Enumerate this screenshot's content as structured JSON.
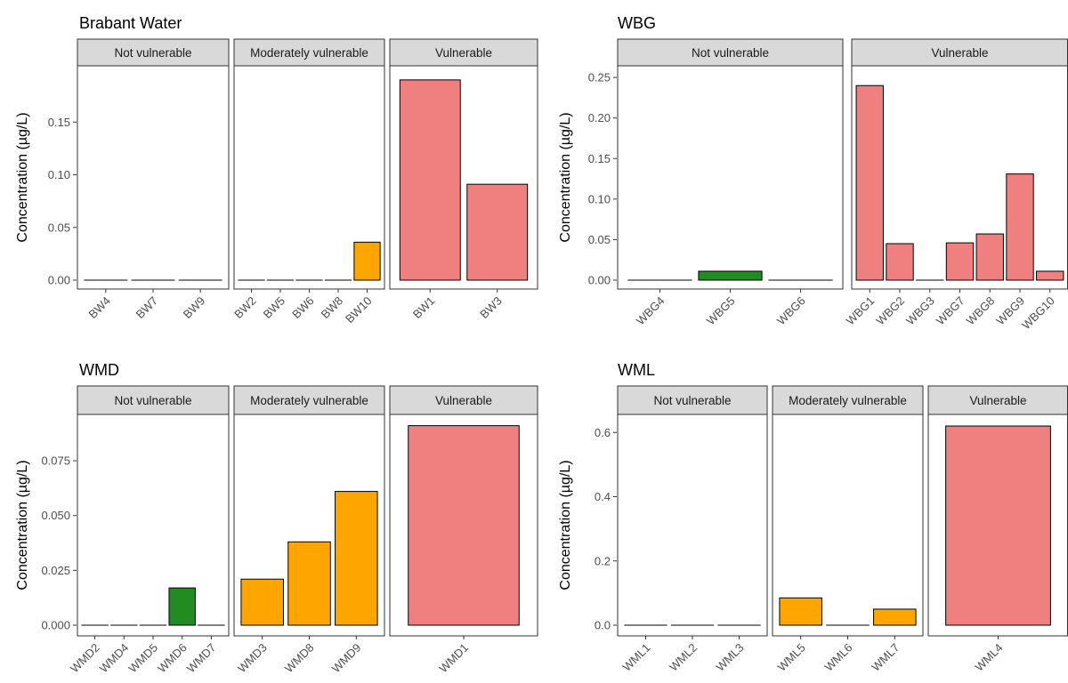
{
  "colors": {
    "not_vulnerable": "#228B22",
    "moderately_vulnerable": "#FFA500",
    "vulnerable": "#F08080",
    "strip_fill": "#D9D9D9",
    "panel_border": "#333333"
  },
  "chart_data": [
    {
      "type": "bar",
      "title": "Brabant Water",
      "ylabel": "Concentration (µg/L)",
      "ylim": [
        0,
        0.2
      ],
      "yticks": [
        0,
        0.05,
        0.1,
        0.15
      ],
      "ytick_labels": [
        "0.00",
        "0.05",
        "0.10",
        "0.15"
      ],
      "facets": [
        {
          "label": "Not vulnerable",
          "category": "not_vulnerable",
          "bars": [
            {
              "name": "BW4",
              "value": 0
            },
            {
              "name": "BW7",
              "value": 0
            },
            {
              "name": "BW9",
              "value": 0
            }
          ]
        },
        {
          "label": "Moderately vulnerable",
          "category": "moderately_vulnerable",
          "bars": [
            {
              "name": "BW2",
              "value": 0
            },
            {
              "name": "BW5",
              "value": 0
            },
            {
              "name": "BW6",
              "value": 0
            },
            {
              "name": "BW8",
              "value": 0
            },
            {
              "name": "BW10",
              "value": 0.036
            }
          ]
        },
        {
          "label": "Vulnerable",
          "category": "vulnerable",
          "bars": [
            {
              "name": "BW1",
              "value": 0.19
            },
            {
              "name": "BW3",
              "value": 0.091
            }
          ]
        }
      ]
    },
    {
      "type": "bar",
      "title": "WBG",
      "ylabel": "Concentration (µg/L)",
      "ylim": [
        0,
        0.26
      ],
      "yticks": [
        0,
        0.05,
        0.1,
        0.15,
        0.2,
        0.25
      ],
      "ytick_labels": [
        "0.00",
        "0.05",
        "0.10",
        "0.15",
        "0.20",
        "0.25"
      ],
      "facets": [
        {
          "label": "Not vulnerable",
          "category": "not_vulnerable",
          "bars": [
            {
              "name": "WBG4",
              "value": 0
            },
            {
              "name": "WBG5",
              "value": 0.011
            },
            {
              "name": "WBG6",
              "value": 0
            }
          ]
        },
        {
          "label": "Vulnerable",
          "category": "vulnerable",
          "bars": [
            {
              "name": "WBG1",
              "value": 0.24
            },
            {
              "name": "WBG2",
              "value": 0.045
            },
            {
              "name": "WBG3",
              "value": 0
            },
            {
              "name": "WBG7",
              "value": 0.046
            },
            {
              "name": "WBG8",
              "value": 0.057
            },
            {
              "name": "WBG9",
              "value": 0.131
            },
            {
              "name": "WBG10",
              "value": 0.011
            }
          ]
        }
      ]
    },
    {
      "type": "bar",
      "title": "WMD",
      "ylabel": "Concentration (µg/L)",
      "ylim": [
        0,
        0.0945
      ],
      "yticks": [
        0,
        0.025,
        0.05,
        0.075
      ],
      "ytick_labels": [
        "0.000",
        "0.025",
        "0.050",
        "0.075"
      ],
      "facets": [
        {
          "label": "Not vulnerable",
          "category": "not_vulnerable",
          "bars": [
            {
              "name": "WMD2",
              "value": 0
            },
            {
              "name": "WMD4",
              "value": 0
            },
            {
              "name": "WMD5",
              "value": 0
            },
            {
              "name": "WMD6",
              "value": 0.017
            },
            {
              "name": "WMD7",
              "value": 0
            }
          ]
        },
        {
          "label": "Moderately vulnerable",
          "category": "moderately_vulnerable",
          "bars": [
            {
              "name": "WMD3",
              "value": 0.021
            },
            {
              "name": "WMD8",
              "value": 0.038
            },
            {
              "name": "WMD9",
              "value": 0.061
            }
          ]
        },
        {
          "label": "Vulnerable",
          "category": "vulnerable",
          "bars": [
            {
              "name": "WMD1",
              "value": 0.091
            }
          ]
        }
      ]
    },
    {
      "type": "bar",
      "title": "WML",
      "ylabel": "Concentration (µg/L)",
      "ylim": [
        0,
        0.645
      ],
      "yticks": [
        0,
        0.2,
        0.4,
        0.6
      ],
      "ytick_labels": [
        "0.0",
        "0.2",
        "0.4",
        "0.6"
      ],
      "facets": [
        {
          "label": "Not vulnerable",
          "category": "not_vulnerable",
          "bars": [
            {
              "name": "WML1",
              "value": 0
            },
            {
              "name": "WML2",
              "value": 0
            },
            {
              "name": "WML3",
              "value": 0
            }
          ]
        },
        {
          "label": "Moderately vulnerable",
          "category": "moderately_vulnerable",
          "bars": [
            {
              "name": "WML5",
              "value": 0.085
            },
            {
              "name": "WML6",
              "value": 0
            },
            {
              "name": "WML7",
              "value": 0.05
            }
          ]
        },
        {
          "label": "Vulnerable",
          "category": "vulnerable",
          "bars": [
            {
              "name": "WML4",
              "value": 0.62
            }
          ]
        }
      ]
    }
  ]
}
